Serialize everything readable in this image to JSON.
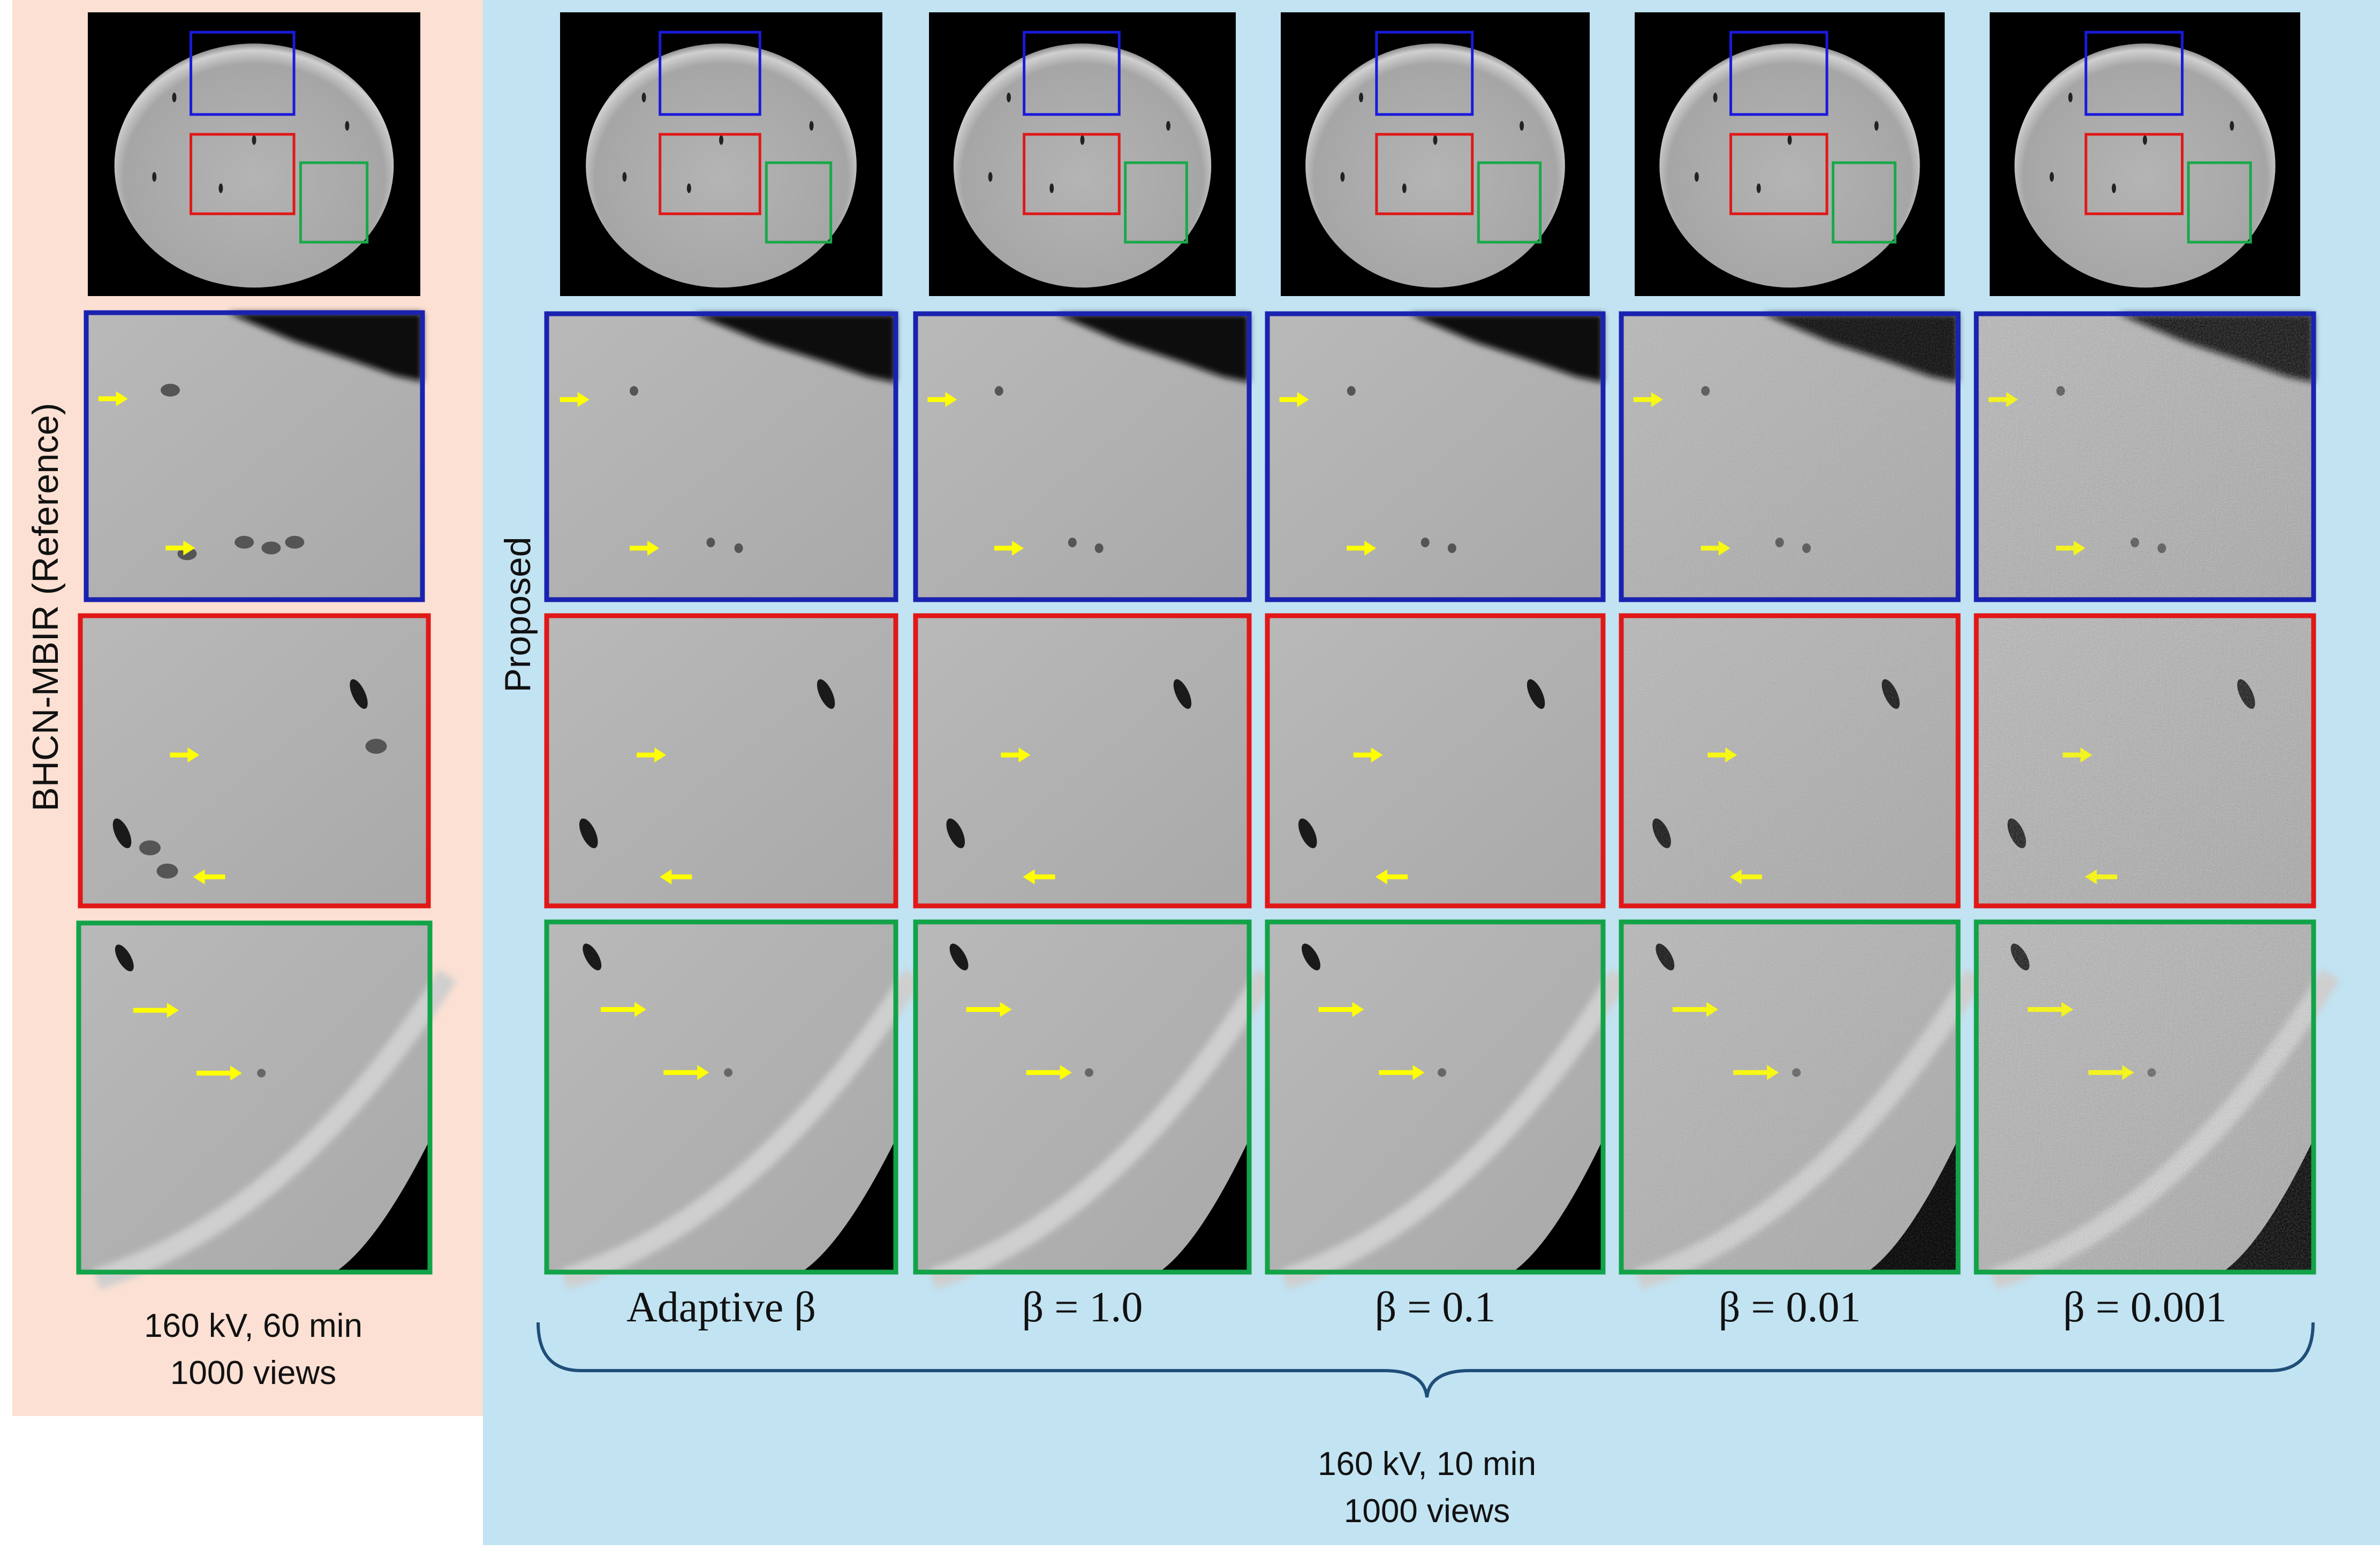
{
  "reference": {
    "label": "BHCN-MBIR (Reference)",
    "caption": [
      "160 kV, 60 min",
      "1000 views"
    ]
  },
  "proposed": {
    "label": "Proposed",
    "columns": [
      "Adaptive β",
      "β = 1.0",
      "β = 0.1",
      "β = 0.01",
      "β = 0.001"
    ],
    "caption": [
      "160 kV, 10 min",
      "1000 views"
    ]
  }
}
